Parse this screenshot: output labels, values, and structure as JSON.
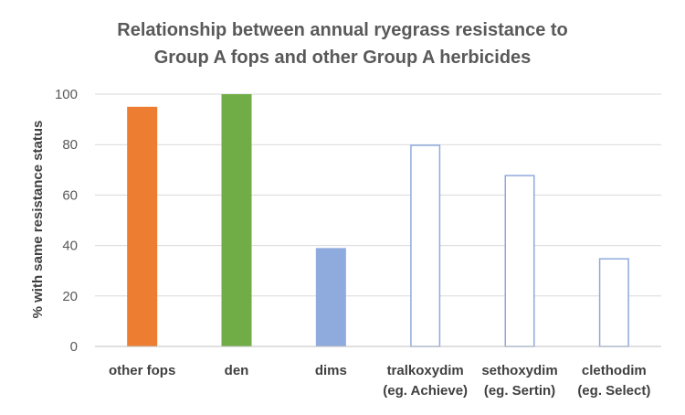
{
  "chart_data": {
    "type": "bar",
    "title_lines": [
      "Relationship between annual ryegrass resistance to",
      "Group A fops and other Group A herbicides"
    ],
    "xlabel": "",
    "ylabel": "% with same resistance status",
    "ylim": [
      0,
      100
    ],
    "yticks": [
      0,
      20,
      40,
      60,
      80,
      100
    ],
    "grid": true,
    "legend": "none",
    "categories": [
      [
        "other fops"
      ],
      [
        "den"
      ],
      [
        "dims"
      ],
      [
        "tralkoxydim",
        "(eg. Achieve)"
      ],
      [
        "sethoxydim",
        "(eg. Sertin)"
      ],
      [
        "clethodim",
        "(eg. Select)"
      ]
    ],
    "values": [
      95,
      100,
      39,
      80,
      68,
      35
    ],
    "bar_styles": [
      {
        "fill": "#ED7D31",
        "stroke": "none"
      },
      {
        "fill": "#70AD47",
        "stroke": "none"
      },
      {
        "fill": "#8FAADC",
        "stroke": "none"
      },
      {
        "fill": "#FFFFFF",
        "stroke": "#8FAADC"
      },
      {
        "fill": "#FFFFFF",
        "stroke": "#8FAADC"
      },
      {
        "fill": "#FFFFFF",
        "stroke": "#8FAADC"
      }
    ],
    "colors": {
      "grid": "#D9D9D9",
      "axis": "#BFBFBF"
    }
  }
}
